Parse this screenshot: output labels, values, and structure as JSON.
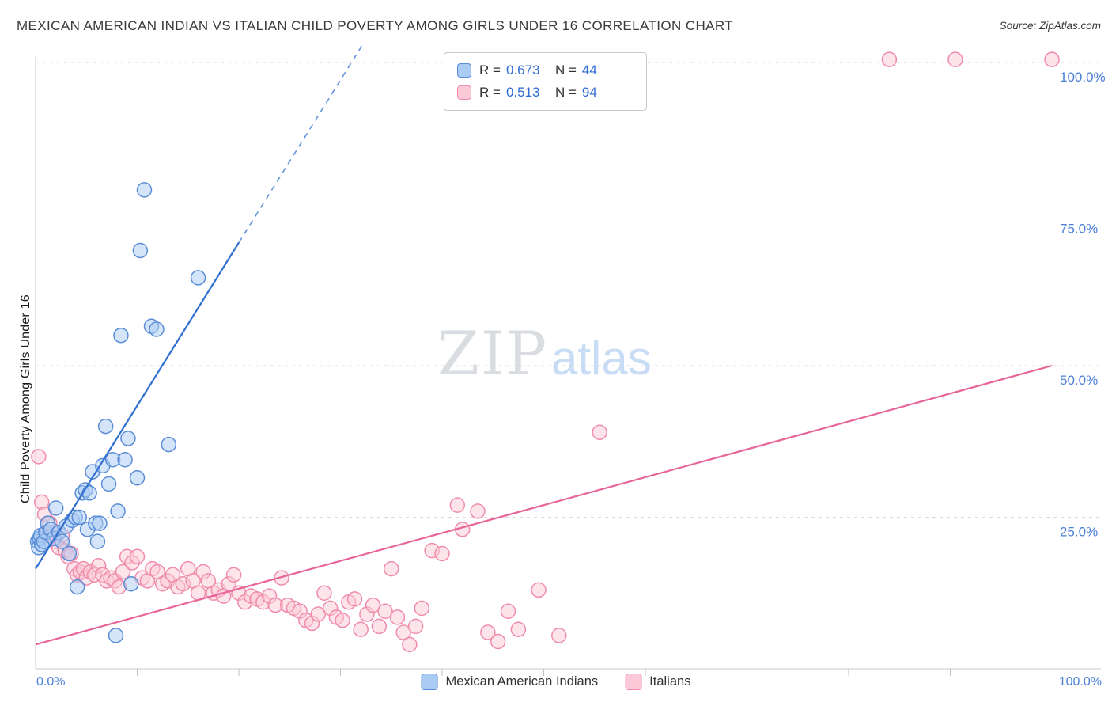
{
  "header": {
    "title": "MEXICAN AMERICAN INDIAN VS ITALIAN CHILD POVERTY AMONG GIRLS UNDER 16 CORRELATION CHART",
    "source": "Source: ZipAtlas.com"
  },
  "watermark": {
    "zip": "ZIP",
    "atlas": "atlas"
  },
  "legend": {
    "r_label": "R =",
    "n_label": "N ="
  },
  "axes": {
    "y_label": "Child Poverty Among Girls Under 16",
    "x_min_label": "0.0%",
    "x_max_label": "100.0%",
    "y_tick_labels": [
      {
        "value": 100,
        "label": "100.0%"
      },
      {
        "value": 75,
        "label": "75.0%"
      },
      {
        "value": 50,
        "label": "50.0%"
      },
      {
        "value": 25,
        "label": "25.0%"
      }
    ]
  },
  "theme": {
    "axis_label_color": "#4a80d8",
    "grid_color": "#d9d9d9",
    "axis_color": "#c9c9c9",
    "tick_color": "#c0c0c0"
  },
  "chart_data": {
    "type": "scatter",
    "title": "Mexican American Indian vs Italian Child Poverty Among Girls Under 16",
    "xlabel": "",
    "ylabel": "Child Poverty Among Girls Under 16",
    "xlim": [
      0,
      100
    ],
    "ylim": [
      0,
      100
    ],
    "x_unit": "percent",
    "y_unit": "percent",
    "grid": "horizontal-dashed",
    "legend_position": "top-center",
    "y_gridlines": [
      25,
      50,
      75,
      100
    ],
    "x_minor_ticks": [
      10,
      20,
      30,
      40,
      50,
      60,
      70,
      80,
      90
    ],
    "series": [
      {
        "name": "Mexican American Indians",
        "r": 0.673,
        "n": 44,
        "color": "#5b8dd6",
        "fill": "#aacbf4",
        "line": "#2f6fd0",
        "trend": {
          "x1": 0,
          "y1": 16.5,
          "x2": 20,
          "y2": 70.3,
          "dash_x2": 32.2,
          "dash_y2": 103
        },
        "points": [
          [
            0.2,
            21.0
          ],
          [
            0.3,
            20.0
          ],
          [
            0.4,
            21.5
          ],
          [
            0.5,
            22.0
          ],
          [
            0.6,
            20.5
          ],
          [
            0.8,
            21.0
          ],
          [
            1.0,
            22.5
          ],
          [
            1.2,
            24.0
          ],
          [
            1.5,
            23.0
          ],
          [
            1.8,
            21.5
          ],
          [
            2.0,
            26.5
          ],
          [
            2.3,
            22.5
          ],
          [
            2.6,
            21.0
          ],
          [
            3.0,
            23.5
          ],
          [
            3.3,
            19.0
          ],
          [
            3.6,
            24.5
          ],
          [
            3.9,
            25.0
          ],
          [
            4.1,
            13.5
          ],
          [
            4.3,
            25.0
          ],
          [
            4.6,
            29.0
          ],
          [
            4.9,
            29.5
          ],
          [
            5.1,
            23.0
          ],
          [
            5.3,
            29.0
          ],
          [
            5.6,
            32.5
          ],
          [
            5.9,
            24.0
          ],
          [
            6.1,
            21.0
          ],
          [
            6.3,
            24.0
          ],
          [
            6.6,
            33.5
          ],
          [
            6.9,
            40.0
          ],
          [
            7.2,
            30.5
          ],
          [
            7.6,
            34.5
          ],
          [
            7.9,
            5.5
          ],
          [
            8.1,
            26.0
          ],
          [
            8.4,
            55.0
          ],
          [
            8.8,
            34.5
          ],
          [
            9.1,
            38.0
          ],
          [
            9.4,
            14.0
          ],
          [
            10.0,
            31.5
          ],
          [
            10.3,
            69.0
          ],
          [
            10.7,
            79.0
          ],
          [
            11.4,
            56.5
          ],
          [
            11.9,
            56.0
          ],
          [
            13.1,
            37.0
          ],
          [
            16.0,
            64.5
          ]
        ]
      },
      {
        "name": "Italians",
        "r": 0.513,
        "n": 94,
        "color": "#f08cab",
        "fill": "#fbc9d8",
        "line": "#e8659a",
        "trend": {
          "x1": 0,
          "y1": 4.0,
          "x2": 100,
          "y2": 50.0
        },
        "points": [
          [
            0.3,
            35.0
          ],
          [
            0.6,
            27.5
          ],
          [
            0.9,
            25.5
          ],
          [
            1.1,
            22.0
          ],
          [
            1.4,
            24.0
          ],
          [
            1.7,
            22.5
          ],
          [
            2.0,
            21.0
          ],
          [
            2.3,
            20.0
          ],
          [
            2.6,
            22.0
          ],
          [
            2.9,
            19.5
          ],
          [
            3.2,
            18.5
          ],
          [
            3.5,
            19.0
          ],
          [
            3.8,
            16.5
          ],
          [
            4.1,
            15.5
          ],
          [
            4.4,
            16.0
          ],
          [
            4.7,
            16.5
          ],
          [
            5.0,
            15.0
          ],
          [
            5.4,
            16.0
          ],
          [
            5.8,
            15.5
          ],
          [
            6.2,
            17.0
          ],
          [
            6.6,
            15.5
          ],
          [
            7.0,
            14.5
          ],
          [
            7.4,
            15.0
          ],
          [
            7.8,
            14.5
          ],
          [
            8.2,
            13.5
          ],
          [
            8.6,
            16.0
          ],
          [
            9.0,
            18.5
          ],
          [
            9.5,
            17.5
          ],
          [
            10.0,
            18.5
          ],
          [
            10.5,
            15.0
          ],
          [
            11.0,
            14.5
          ],
          [
            11.5,
            16.5
          ],
          [
            12.0,
            16.0
          ],
          [
            12.5,
            14.0
          ],
          [
            13.0,
            14.5
          ],
          [
            13.5,
            15.5
          ],
          [
            14.0,
            13.5
          ],
          [
            14.5,
            14.0
          ],
          [
            15.0,
            16.5
          ],
          [
            15.5,
            14.5
          ],
          [
            16.0,
            12.5
          ],
          [
            16.5,
            16.0
          ],
          [
            17.0,
            14.5
          ],
          [
            17.5,
            12.5
          ],
          [
            18.0,
            13.0
          ],
          [
            18.5,
            12.0
          ],
          [
            19.0,
            14.0
          ],
          [
            19.5,
            15.5
          ],
          [
            20.0,
            12.5
          ],
          [
            20.6,
            11.0
          ],
          [
            21.2,
            12.0
          ],
          [
            21.8,
            11.5
          ],
          [
            22.4,
            11.0
          ],
          [
            23.0,
            12.0
          ],
          [
            23.6,
            10.5
          ],
          [
            24.2,
            15.0
          ],
          [
            24.8,
            10.5
          ],
          [
            25.4,
            10.0
          ],
          [
            26.0,
            9.5
          ],
          [
            26.6,
            8.0
          ],
          [
            27.2,
            7.5
          ],
          [
            27.8,
            9.0
          ],
          [
            28.4,
            12.5
          ],
          [
            29.0,
            10.0
          ],
          [
            29.6,
            8.5
          ],
          [
            30.2,
            8.0
          ],
          [
            30.8,
            11.0
          ],
          [
            31.4,
            11.5
          ],
          [
            32.0,
            6.5
          ],
          [
            32.6,
            9.0
          ],
          [
            33.2,
            10.5
          ],
          [
            33.8,
            7.0
          ],
          [
            34.4,
            9.5
          ],
          [
            35.0,
            16.5
          ],
          [
            35.6,
            8.5
          ],
          [
            36.2,
            6.0
          ],
          [
            36.8,
            4.0
          ],
          [
            37.4,
            7.0
          ],
          [
            38.0,
            10.0
          ],
          [
            39.0,
            19.5
          ],
          [
            40.0,
            19.0
          ],
          [
            41.5,
            27.0
          ],
          [
            42.0,
            23.0
          ],
          [
            43.5,
            26.0
          ],
          [
            44.5,
            6.0
          ],
          [
            45.5,
            4.5
          ],
          [
            46.5,
            9.5
          ],
          [
            47.5,
            6.5
          ],
          [
            49.5,
            13.0
          ],
          [
            51.5,
            5.5
          ],
          [
            55.5,
            39.0
          ],
          [
            84.0,
            100.5
          ],
          [
            90.5,
            100.5
          ],
          [
            100.0,
            100.5
          ]
        ]
      }
    ]
  }
}
